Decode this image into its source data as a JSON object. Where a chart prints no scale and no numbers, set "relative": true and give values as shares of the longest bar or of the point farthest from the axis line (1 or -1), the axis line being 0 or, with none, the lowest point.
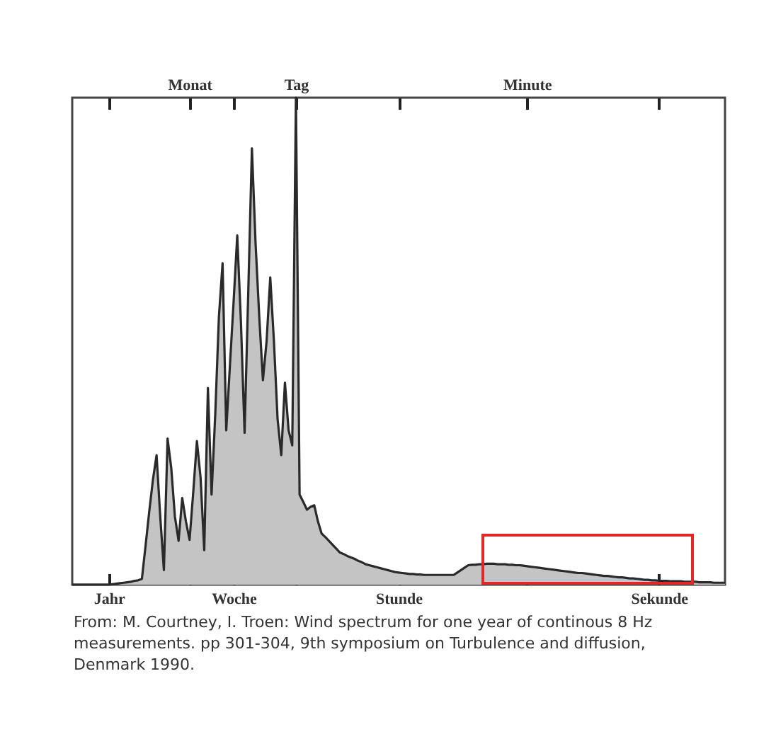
{
  "chart_data": {
    "type": "area",
    "relative": true,
    "categories": [
      null,
      null,
      null,
      null,
      null,
      null,
      null,
      null,
      null,
      null,
      "Jahr",
      null,
      null,
      null,
      null,
      null,
      null,
      null,
      null,
      null,
      null,
      null,
      null,
      null,
      null,
      null,
      null,
      null,
      null,
      null,
      null,
      null,
      "Monat",
      null,
      null,
      null,
      null,
      null,
      null,
      null,
      null,
      null,
      null,
      null,
      "Woche",
      null,
      null,
      null,
      null,
      null,
      null,
      null,
      null,
      null,
      null,
      null,
      null,
      null,
      null,
      null,
      null,
      "Tag",
      null,
      null,
      null,
      null,
      null,
      null,
      null,
      null,
      null,
      null,
      null,
      null,
      null,
      null,
      null,
      null,
      null,
      null,
      null,
      null,
      null,
      null,
      null,
      null,
      null,
      null,
      null,
      "Stunde",
      null,
      null,
      null,
      null,
      null,
      null,
      null,
      null,
      null,
      null,
      null,
      null,
      null,
      null,
      null,
      null,
      null,
      null,
      null,
      null,
      null,
      null,
      null,
      null,
      null,
      null,
      null,
      null,
      null,
      null,
      null,
      null,
      null,
      null,
      "Minute",
      null,
      null,
      null,
      null,
      null,
      null,
      null,
      null,
      null,
      null,
      null,
      null,
      null,
      null,
      null,
      null,
      null,
      null,
      null,
      null,
      null,
      null,
      null,
      null,
      null,
      null,
      null,
      null,
      null,
      null,
      null,
      null,
      null,
      null,
      null,
      "Sekunde",
      null,
      null,
      null,
      null,
      null,
      null,
      null,
      null,
      null,
      null,
      null,
      null,
      null,
      null,
      null,
      null,
      null,
      null
    ],
    "series": [
      {
        "color": "#c4c4c4",
        "values": [
          0,
          0,
          0,
          0,
          0,
          0,
          0,
          0,
          0,
          0,
          0,
          0.001,
          0.002,
          0.003,
          0.004,
          0.005,
          0.006,
          0.008,
          0.009,
          0.012,
          0.08,
          0.15,
          0.215,
          0.266,
          0.14,
          0.03,
          0.3,
          0.24,
          0.14,
          0.09,
          0.178,
          0.13,
          0.092,
          0.19,
          0.295,
          0.22,
          0.071,
          0.404,
          0.185,
          0.35,
          0.55,
          0.66,
          0.317,
          0.45,
          0.58,
          0.717,
          0.54,
          0.312,
          0.6,
          0.896,
          0.7,
          0.55,
          0.42,
          0.5,
          0.631,
          0.5,
          0.34,
          0.266,
          0.415,
          0.317,
          0.286,
          1,
          0.185,
          0.17,
          0.154,
          0.16,
          0.163,
          0.13,
          0.105,
          0.098,
          0.09,
          0.082,
          0.074,
          0.066,
          0.063,
          0.059,
          0.056,
          0.053,
          0.049,
          0.046,
          0.042,
          0.04,
          0.038,
          0.036,
          0.034,
          0.032,
          0.03,
          0.028,
          0.026,
          0.025,
          0.024,
          0.023,
          0.022,
          0.022,
          0.021,
          0.021,
          0.02,
          0.02,
          0.02,
          0.02,
          0.02,
          0.02,
          0.02,
          0.02,
          0.02,
          0.025,
          0.03,
          0.035,
          0.04,
          0.041,
          0.041,
          0.042,
          0.042,
          0.043,
          0.043,
          0.043,
          0.042,
          0.042,
          0.042,
          0.041,
          0.041,
          0.04,
          0.04,
          0.039,
          0.038,
          0.037,
          0.036,
          0.035,
          0.034,
          0.033,
          0.032,
          0.031,
          0.03,
          0.029,
          0.028,
          0.027,
          0.026,
          0.025,
          0.024,
          0.024,
          0.023,
          0.022,
          0.021,
          0.02,
          0.019,
          0.018,
          0.018,
          0.017,
          0.016,
          0.015,
          0.015,
          0.014,
          0.013,
          0.013,
          0.012,
          0.011,
          0.01,
          0.01,
          0.009,
          0.009,
          0.008,
          0.008,
          0.008,
          0.007,
          0.007,
          0.007,
          0.007,
          0.006,
          0.006,
          0.006,
          0.006,
          0.005,
          0.005,
          0.005,
          0.005,
          0.004,
          0.004,
          0.004,
          0.004
        ]
      }
    ],
    "annotations": [
      "From: M. Courtney, I. Troen: Wind spectrum for one year of continous 8 Hz measurements. pp 301-304, 9th symposium on Turbulence and diffusion, Denmark 1990."
    ]
  }
}
